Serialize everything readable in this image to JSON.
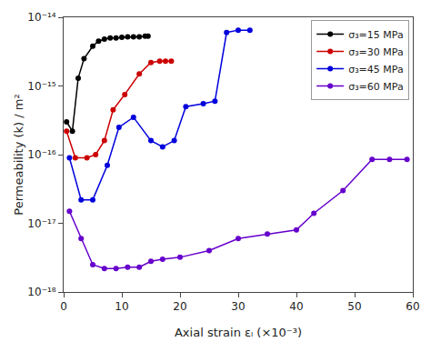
{
  "chart_data": {
    "type": "line",
    "xlabel": "Axial strain εₗ (×10⁻³)",
    "ylabel": "Permeability (k) / m²",
    "log": "y",
    "grid": false,
    "legend": "upper right",
    "marker": "circle",
    "line_style": "solid",
    "xlim": [
      0,
      60
    ],
    "xticks": [
      0,
      10,
      20,
      30,
      40,
      50,
      60
    ],
    "ylim": [
      1e-18,
      1e-14
    ],
    "yticks": [
      {
        "value": 1e-18,
        "label": "10⁻¹⁸"
      },
      {
        "value": 1e-17,
        "label": "10⁻¹⁷"
      },
      {
        "value": 1e-16,
        "label": "10⁻¹⁶"
      },
      {
        "value": 1e-15,
        "label": "10⁻¹⁵"
      },
      {
        "value": 1e-14,
        "label": "10⁻¹⁴"
      }
    ],
    "series": [
      {
        "name": "σ₃=15 MPa",
        "color": "#000000",
        "x": [
          0.5,
          1.5,
          2.5,
          3.5,
          5.0,
          6.0,
          7.0,
          8.0,
          9.0,
          10.0,
          11.0,
          12.0,
          13.0,
          14.0,
          14.5
        ],
        "values": [
          3e-16,
          2.2e-16,
          1.3e-15,
          2.5e-15,
          3.8e-15,
          4.5e-15,
          4.8e-15,
          5e-15,
          5e-15,
          5.1e-15,
          5.2e-15,
          5.2e-15,
          5.2e-15,
          5.3e-15,
          5.3e-15
        ]
      },
      {
        "name": "σ₃=30 MPa",
        "color": "#cc0000",
        "x": [
          0.5,
          2.0,
          4.0,
          5.5,
          7.0,
          8.5,
          10.5,
          13.0,
          15.0,
          16.5,
          17.5,
          18.5
        ],
        "values": [
          2.2e-16,
          9e-17,
          9e-17,
          1e-16,
          1.6e-16,
          4.5e-16,
          7.5e-16,
          1.5e-15,
          2.2e-15,
          2.3e-15,
          2.3e-15,
          2.3e-15
        ]
      },
      {
        "name": "σ₃=45 MPa",
        "color": "#0000dd",
        "x": [
          1.0,
          3.0,
          5.0,
          7.5,
          9.5,
          12.0,
          15.0,
          17.0,
          19.0,
          21.0,
          24.0,
          26.0,
          28.0,
          30.0,
          32.0
        ],
        "values": [
          9e-17,
          2.2e-17,
          2.2e-17,
          7e-17,
          2.5e-16,
          3.5e-16,
          1.6e-16,
          1.3e-16,
          1.6e-16,
          5e-16,
          5.5e-16,
          6e-16,
          6e-15,
          6.5e-15,
          6.5e-15
        ]
      },
      {
        "name": "σ₃=60 MPa",
        "color": "#6600cc",
        "x": [
          1.0,
          3.0,
          5.0,
          7.0,
          9.0,
          11.0,
          13.0,
          15.0,
          17.0,
          20.0,
          25.0,
          30.0,
          35.0,
          40.0,
          43.0,
          48.0,
          53.0,
          56.0,
          59.0
        ],
        "values": [
          1.5e-17,
          6e-18,
          2.5e-18,
          2.2e-18,
          2.2e-18,
          2.3e-18,
          2.3e-18,
          2.8e-18,
          3e-18,
          3.2e-18,
          4e-18,
          6e-18,
          7e-18,
          8e-18,
          1.4e-17,
          3e-17,
          8.5e-17,
          8.5e-17,
          8.5e-17
        ]
      }
    ]
  }
}
